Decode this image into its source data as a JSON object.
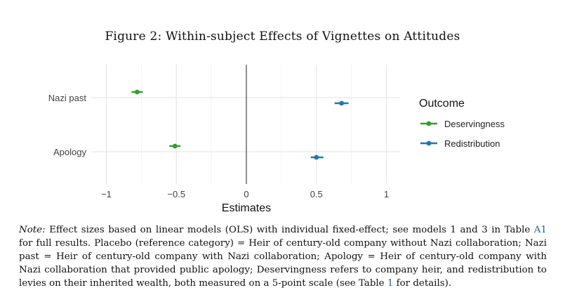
{
  "figure_title": "Figure 2: Within-subject Effects of Vignettes on Attitudes",
  "chart_data": {
    "type": "scatter",
    "subtype": "coefficient-plot",
    "categories": [
      "Nazi past",
      "Apology"
    ],
    "xlabel": "Estimates",
    "ylabel": "",
    "xlim": [
      -1.1,
      1.1
    ],
    "xticks": [
      -1,
      -0.5,
      0,
      0.5,
      1
    ],
    "xtick_labels": [
      "−1",
      "−0.5",
      "0",
      "0.5",
      "1"
    ],
    "reference_line": 0,
    "grid": true,
    "legend": {
      "title": "Outcome",
      "placement": "right"
    },
    "series": [
      {
        "name": "Deservingness",
        "color": "#33a02c",
        "points": [
          {
            "category": "Nazi past",
            "estimate": -0.78,
            "ci": [
              -0.82,
              -0.74
            ]
          },
          {
            "category": "Apology",
            "estimate": -0.51,
            "ci": [
              -0.55,
              -0.47
            ]
          }
        ]
      },
      {
        "name": "Redistribution",
        "color": "#1f78b4",
        "points": [
          {
            "category": "Nazi past",
            "estimate": 0.68,
            "ci": [
              0.63,
              0.73
            ]
          },
          {
            "category": "Apology",
            "estimate": 0.5,
            "ci": [
              0.46,
              0.55
            ]
          }
        ]
      }
    ]
  },
  "note": {
    "label": "Note:",
    "p1": " Effect sizes based on linear models (OLS) with individual fixed-effect; see models 1 and 3 in Table ",
    "ref1": "A1",
    "p2": " for full results. Placebo (reference category) = Heir of century-old company without Nazi collaboration; Nazi past = Heir of century-old company with Nazi collaboration; Apology = Heir of century-old company with Nazi collaboration that provided public apology; Deservingness refers to company heir, and redistribution to levies on their inherited wealth, both measured on a 5-point scale (see Table ",
    "ref2": "1",
    "p3": " for details)."
  }
}
